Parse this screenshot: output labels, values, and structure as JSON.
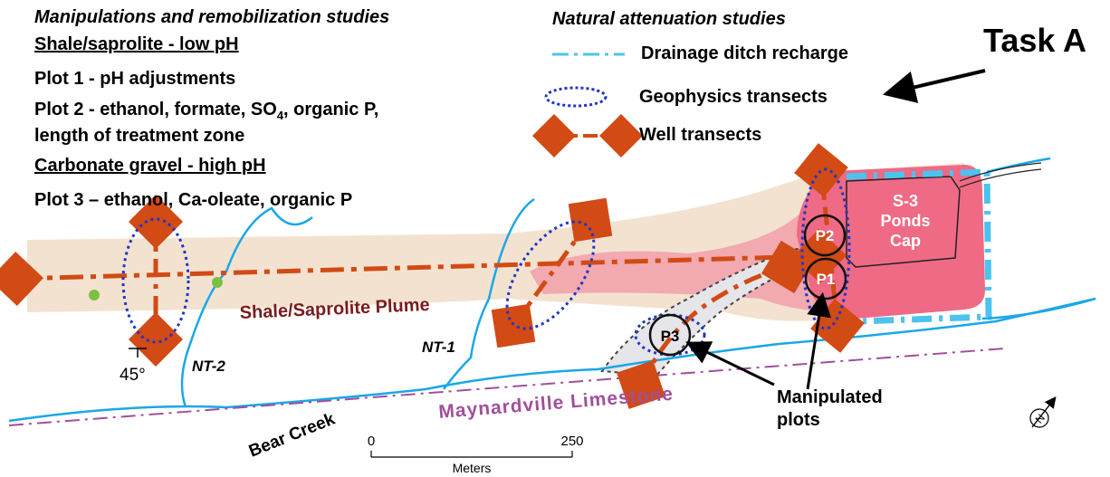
{
  "manipulation": {
    "heading": "Manipulations and remobilization studies",
    "shale_heading": "Shale/saprolite - low pH",
    "plot1": "Plot 1 - pH adjustments",
    "plot2_pre": "Plot 2 - ethanol, formate, SO",
    "plot2_sub": "4",
    "plot2_post": ", organic P,",
    "plot2_line2": "length of treatment zone",
    "carbonate_heading": "Carbonate gravel - high pH",
    "plot3": "Plot 3 – ethanol, Ca-oleate, organic P"
  },
  "natural": {
    "heading": "Natural attenuation studies",
    "legend": {
      "drainage": "Drainage ditch recharge",
      "geophysics": "Geophysics transects",
      "wells": "Well transects"
    }
  },
  "task_label": "Task A",
  "map_labels": {
    "plume": "Shale/Saprolite Plume",
    "limestone": "Maynardville Limestone",
    "creek": "Bear Creek",
    "nt1": "NT-1",
    "nt2": "NT-2",
    "angle": "45°",
    "ponds_line1": "S-3",
    "ponds_line2": "Ponds",
    "ponds_line3": "Cap",
    "p1": "P1",
    "p2": "P2",
    "p3": "P3",
    "manip_line1": "Manipulated",
    "manip_line2": "plots",
    "scale_start": "0",
    "scale_end": "250",
    "scale_unit": "Meters",
    "north": "N"
  },
  "colors": {
    "plume_band": "#f3e2d0",
    "plume_core": "#f2a9b0",
    "ponds": "#ee6a85",
    "well_line": "#d24a14",
    "geophysics": "#1d36c8",
    "creek": "#1aa7e6",
    "limestone_line": "#a0509a",
    "limestone_text": "#a0509a",
    "plume_text": "#7a1c1c"
  }
}
